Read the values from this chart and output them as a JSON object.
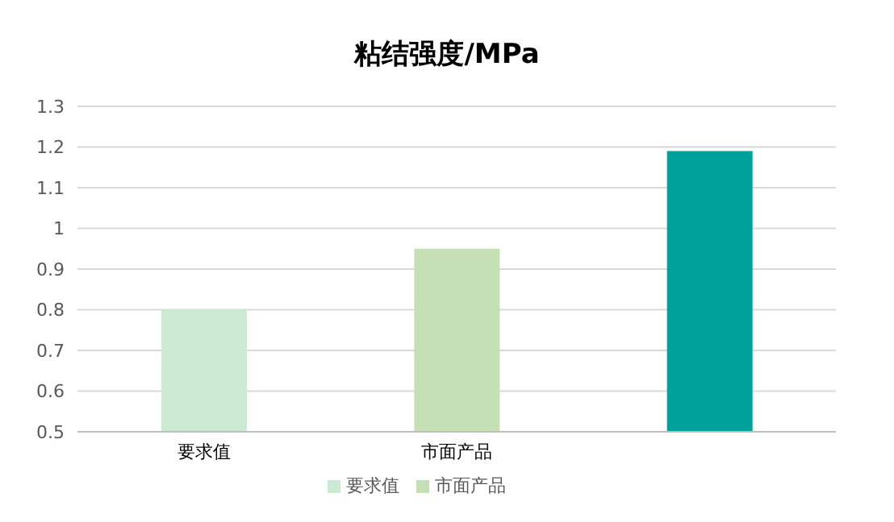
{
  "chart_data": {
    "type": "bar",
    "title": "粘结强度/MPa",
    "categories": [
      "要求值",
      "市面产品",
      null
    ],
    "series": [
      {
        "name": "要求值",
        "color": "#cce9d3",
        "values": [
          0.8,
          null,
          null
        ]
      },
      {
        "name": "市面产品",
        "color": "#c5e0b4",
        "values": [
          null,
          0.95,
          null
        ]
      },
      {
        "color": "#00a19b",
        "values": [
          null,
          null,
          1.19
        ]
      }
    ],
    "stacked": true,
    "ylim": [
      0.5,
      1.3
    ],
    "yticks": [
      0.5,
      0.6,
      0.7,
      0.8,
      0.9,
      1,
      1.1,
      1.2,
      1.3
    ],
    "grid": "y",
    "legend": "bottom"
  }
}
